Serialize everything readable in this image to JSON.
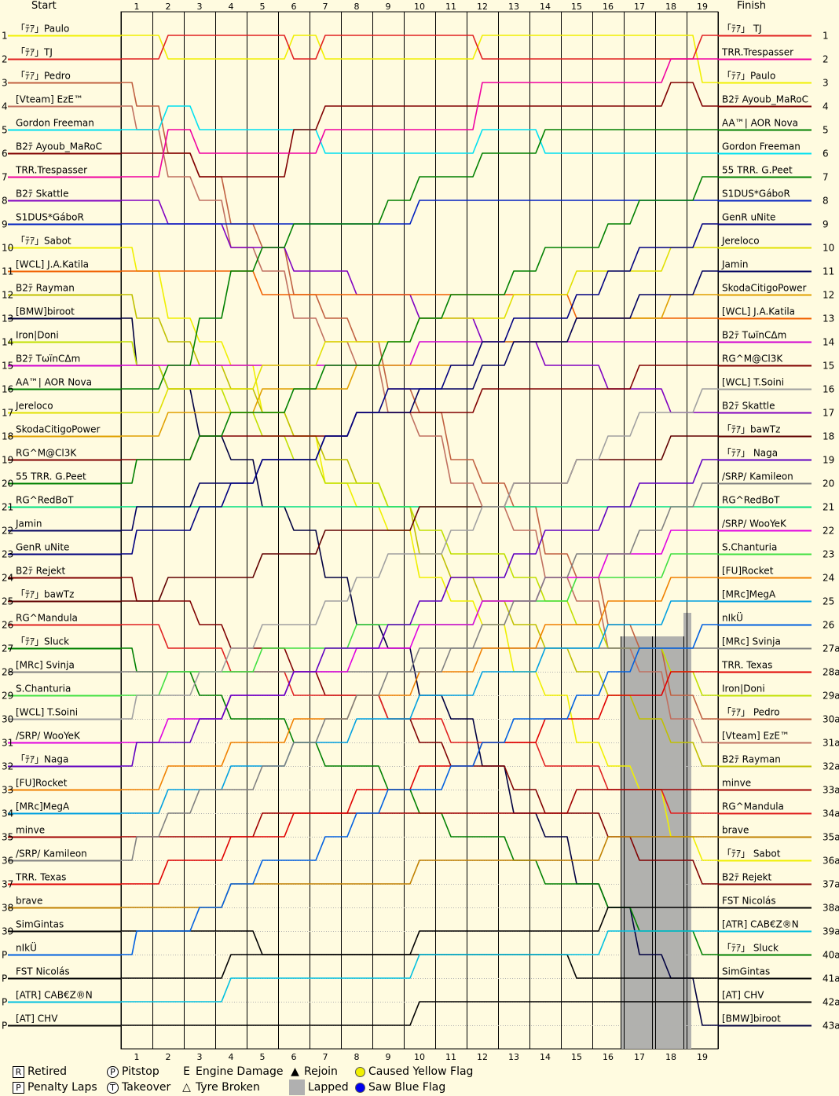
{
  "chart_data": {
    "type": "line",
    "title": "",
    "header_left": "Start",
    "header_right": "Finish",
    "laps": [
      "1",
      "2",
      "3",
      "4",
      "5",
      "6",
      "7",
      "8",
      "9",
      "10",
      "11",
      "12",
      "13",
      "14",
      "15",
      "16",
      "17",
      "18",
      "19"
    ],
    "start_position_labels": [
      "1",
      "2",
      "3",
      "4",
      "5",
      "6",
      "7",
      "8",
      "9",
      "10",
      "11",
      "12",
      "13",
      "14",
      "15",
      "16",
      "17",
      "18",
      "19",
      "20",
      "21",
      "22",
      "23",
      "24",
      "25",
      "26",
      "27",
      "28",
      "29",
      "30",
      "31",
      "32",
      "33",
      "34",
      "35",
      "36",
      "37",
      "38",
      "39",
      "P",
      "P",
      "P",
      "P"
    ],
    "finish_position_labels": [
      "1",
      "2",
      "3",
      "4",
      "5",
      "6",
      "7",
      "8",
      "9",
      "10",
      "11",
      "12",
      "13",
      "14",
      "15",
      "16",
      "17",
      "18",
      "19",
      "20",
      "21",
      "22",
      "23",
      "24",
      "25",
      "26",
      "27a",
      "28a",
      "29a",
      "30a",
      "31a",
      "32a",
      "33a",
      "34a",
      "35a",
      "36a",
      "37a",
      "38a",
      "39a",
      "40a",
      "41a",
      "42a",
      "43a"
    ],
    "start_grid": [
      {
        "name": "「ﾃｱ」Paulo",
        "color": "#f0f000"
      },
      {
        "name": "「ﾃｱ」TJ",
        "color": "#e02020"
      },
      {
        "name": "「ﾃｱ」Pedro",
        "color": "#c06040"
      },
      {
        "name": "[Vteam] EzE™",
        "color": "#c07060"
      },
      {
        "name": "Gordon Freeman",
        "color": "#00e0f0"
      },
      {
        "name": "B2ﾃ Ayoub_MaRoC",
        "color": "#800000"
      },
      {
        "name": "TRR.Trespasser",
        "color": "#f000a0"
      },
      {
        "name": "B2ﾃ Skattle",
        "color": "#8000c0"
      },
      {
        "name": "S1DUS*GáboR",
        "color": "#0020c0"
      },
      {
        "name": "「ﾃｱ」Sabot",
        "color": "#f0f000"
      },
      {
        "name": "[WCL] J.A.Katila",
        "color": "#f06000"
      },
      {
        "name": "B2ﾃ Rayman",
        "color": "#c0c000"
      },
      {
        "name": "[BMW]biroot",
        "color": "#000040"
      },
      {
        "name": "Iron|Doni",
        "color": "#c0e000"
      },
      {
        "name": "B2ﾃ TωïnCΔm",
        "color": "#d000d0"
      },
      {
        "name": "AA™| AOR Nova",
        "color": "#008000"
      },
      {
        "name": "Jereloco",
        "color": "#e0e000"
      },
      {
        "name": "SkodaCitigoPower",
        "color": "#e0a000"
      },
      {
        "name": "RG^M@Cl3K",
        "color": "#800000"
      },
      {
        "name": "55 TRR. G.Peet",
        "color": "#008000"
      },
      {
        "name": "RG^RedBoT",
        "color": "#00e080"
      },
      {
        "name": "Jamin",
        "color": "#000060"
      },
      {
        "name": "GenR uNite",
        "color": "#000080"
      },
      {
        "name": "B2ﾃ Rejekt",
        "color": "#800000"
      },
      {
        "name": "「ﾃｱ」bawTz",
        "color": "#600000"
      },
      {
        "name": "RG^Mandula",
        "color": "#e02020"
      },
      {
        "name": "「ﾃｱ」Sluck",
        "color": "#008000"
      },
      {
        "name": "[MRc] Svinja",
        "color": "#808080"
      },
      {
        "name": "S.Chanturia",
        "color": "#40e040"
      },
      {
        "name": "[WCL] T.Soini",
        "color": "#a0a0a0"
      },
      {
        "name": "/SRP/ WooYeK",
        "color": "#e000e0"
      },
      {
        "name": "「ﾃｱ」Naga",
        "color": "#6000c0"
      },
      {
        "name": "[FU]Rocket",
        "color": "#f08000"
      },
      {
        "name": "[MRc]MegA",
        "color": "#00a0e0"
      },
      {
        "name": "minve",
        "color": "#a00000"
      },
      {
        "name": "/SRP/ Kamileon",
        "color": "#808080"
      },
      {
        "name": "TRR. Texas",
        "color": "#e00000"
      },
      {
        "name": "brave",
        "color": "#c08000"
      },
      {
        "name": "SimGintas",
        "color": "#000000"
      },
      {
        "name": "nIkÜ",
        "color": "#0060e0"
      },
      {
        "name": "FST Nicolás",
        "color": "#000000"
      },
      {
        "name": "[ATR] CAB€Z®N",
        "color": "#00c0e0"
      },
      {
        "name": "[AT] CHV",
        "color": "#000000"
      }
    ],
    "finish_order": [
      {
        "name": "「ﾃｱ」 TJ",
        "color": "#e02020"
      },
      {
        "name": "TRR.Trespasser",
        "color": "#f000a0"
      },
      {
        "name": "「ﾃｱ」Paulo",
        "color": "#f0f000"
      },
      {
        "name": "B2ﾃ Ayoub_MaRoC",
        "color": "#800000"
      },
      {
        "name": "AA™| AOR Nova",
        "color": "#008000"
      },
      {
        "name": "Gordon Freeman",
        "color": "#00e0f0"
      },
      {
        "name": "55 TRR. G.Peet",
        "color": "#008000"
      },
      {
        "name": "S1DUS*GáboR",
        "color": "#0020c0"
      },
      {
        "name": "GenR uNite",
        "color": "#000080"
      },
      {
        "name": "Jereloco",
        "color": "#e0e000"
      },
      {
        "name": "Jamin",
        "color": "#000060"
      },
      {
        "name": "SkodaCitigoPower",
        "color": "#e0a000"
      },
      {
        "name": "[WCL] J.A.Katila",
        "color": "#f06000"
      },
      {
        "name": "B2ﾃ TωïnCΔm",
        "color": "#d000d0"
      },
      {
        "name": "RG^M@Cl3K",
        "color": "#800000"
      },
      {
        "name": "[WCL] T.Soini",
        "color": "#a0a0a0"
      },
      {
        "name": "B2ﾃ Skattle",
        "color": "#8000c0"
      },
      {
        "name": "「ﾃｱ」bawTz",
        "color": "#600000"
      },
      {
        "name": "「ﾃｱ」 Naga",
        "color": "#6000c0"
      },
      {
        "name": "/SRP/ Kamileon",
        "color": "#808080"
      },
      {
        "name": "RG^RedBoT",
        "color": "#00e080"
      },
      {
        "name": "/SRP/ WooYeK",
        "color": "#e000e0"
      },
      {
        "name": "S.Chanturia",
        "color": "#40e040"
      },
      {
        "name": "[FU]Rocket",
        "color": "#f08000"
      },
      {
        "name": "[MRc]MegA",
        "color": "#00a0e0"
      },
      {
        "name": "nIkÜ",
        "color": "#0060e0"
      },
      {
        "name": "[MRc] Svinja",
        "color": "#808080"
      },
      {
        "name": "TRR. Texas",
        "color": "#e00000"
      },
      {
        "name": "Iron|Doni",
        "color": "#c0e000"
      },
      {
        "name": "「ﾃｱ」 Pedro",
        "color": "#c06040"
      },
      {
        "name": "[Vteam] EzE™",
        "color": "#c07060"
      },
      {
        "name": "B2ﾃ Rayman",
        "color": "#c0c000"
      },
      {
        "name": "minve",
        "color": "#a00000"
      },
      {
        "name": "RG^Mandula",
        "color": "#e02020"
      },
      {
        "name": "brave",
        "color": "#c08000"
      },
      {
        "name": "「ﾃｱ」 Sabot",
        "color": "#f0f000"
      },
      {
        "name": "B2ﾃ Rejekt",
        "color": "#800000"
      },
      {
        "name": "FST Nicolás",
        "color": "#000000"
      },
      {
        "name": "[ATR] CAB€Z®N",
        "color": "#00c0e0"
      },
      {
        "name": "「ﾃｱ」 Sluck",
        "color": "#008000"
      },
      {
        "name": "SimGintas",
        "color": "#000000"
      },
      {
        "name": "[AT] CHV",
        "color": "#000000"
      },
      {
        "name": "[BMW]biroot",
        "color": "#000040"
      }
    ],
    "lap_positions": {
      "TJ": [
        2,
        1,
        1,
        1,
        1,
        2,
        1,
        1,
        1,
        1,
        1,
        2,
        2,
        2,
        2,
        2,
        2,
        2,
        1
      ],
      "Paulo": [
        1,
        2,
        2,
        2,
        2,
        1,
        2,
        2,
        2,
        2,
        2,
        1,
        1,
        1,
        1,
        1,
        1,
        1,
        3
      ],
      "Trespasser": [
        7,
        5,
        6,
        6,
        6,
        6,
        5,
        5,
        5,
        5,
        5,
        3,
        3,
        3,
        3,
        3,
        3,
        2,
        2
      ],
      "Ayoub_MaRoC": [
        6,
        6,
        7,
        7,
        7,
        5,
        4,
        4,
        4,
        4,
        4,
        4,
        4,
        4,
        4,
        4,
        4,
        3,
        4
      ],
      "Gordon": [
        5,
        4,
        5,
        5,
        5,
        5,
        6,
        6,
        6,
        6,
        6,
        5,
        5,
        6,
        6,
        6,
        6,
        6,
        6
      ],
      "AOR_Nova": [
        16,
        15,
        13,
        11,
        10,
        9,
        9,
        9,
        8,
        7,
        7,
        6,
        6,
        5,
        5,
        5,
        5,
        5,
        5
      ]
    },
    "legend": [
      {
        "symbol": "R",
        "label": "Retired"
      },
      {
        "symbol": "P",
        "label": "Penalty Laps"
      },
      {
        "symbol": "P",
        "label": "Pitstop"
      },
      {
        "symbol": "T",
        "label": "Takeover"
      },
      {
        "symbol": "E",
        "label": "Engine Damage"
      },
      {
        "symbol": "△",
        "label": "Tyre Broken"
      },
      {
        "symbol": "▲",
        "label": "Rejoin"
      },
      {
        "symbol": "",
        "label": "Lapped"
      },
      {
        "symbol": "",
        "label": "Caused Yellow Flag"
      },
      {
        "symbol": "",
        "label": "Saw Blue Flag"
      }
    ],
    "grid": true,
    "ylim": [
      1,
      43
    ]
  }
}
